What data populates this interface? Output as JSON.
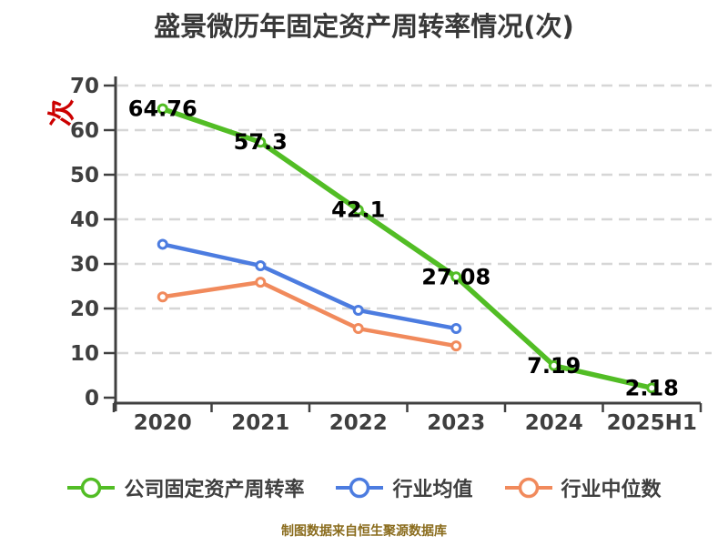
{
  "title": "盛景微历年固定资产周转率情况(次)",
  "y_axis_unit": "次",
  "footer": "制图数据来自恒生聚源数据库",
  "colors": {
    "company": "#52bd25",
    "industry_avg": "#4c7ce0",
    "industry_median": "#f18a5c",
    "grid": "#d6d6d6",
    "axis_line": "#404040",
    "axis_text": "#3f3f3f",
    "title_text": "#383838",
    "data_label": "#000000",
    "footer_text": "#8a6c1d",
    "unit_label": "#cc0000",
    "marker_fill": "#ffffff"
  },
  "chart_data": {
    "type": "line",
    "title": "盛景微历年固定资产周转率情况(次)",
    "categories": [
      "2020",
      "2021",
      "2022",
      "2023",
      "2024",
      "2025H1"
    ],
    "series": [
      {
        "name": "公司固定资产周转率",
        "color_key": "company",
        "values": [
          64.76,
          57.3,
          42.1,
          27.08,
          7.19,
          2.18
        ],
        "labels": [
          "64.76",
          "57.3",
          "42.1",
          "27.08",
          "7.19",
          "2.18"
        ]
      },
      {
        "name": "行业均值",
        "color_key": "industry_avg",
        "values": [
          34.4,
          29.6,
          19.6,
          15.5,
          null,
          null
        ]
      },
      {
        "name": "行业中位数",
        "color_key": "industry_median",
        "values": [
          22.6,
          25.9,
          15.5,
          11.6,
          null,
          null
        ]
      }
    ],
    "ylabel": "次",
    "xlabel": "",
    "ylim": [
      0,
      70
    ],
    "yticks": [
      0,
      10,
      20,
      30,
      40,
      50,
      60,
      70
    ],
    "grid": "horizontal-dashed",
    "legend_position": "bottom",
    "source_note": "制图数据来自恒生聚源数据库"
  }
}
